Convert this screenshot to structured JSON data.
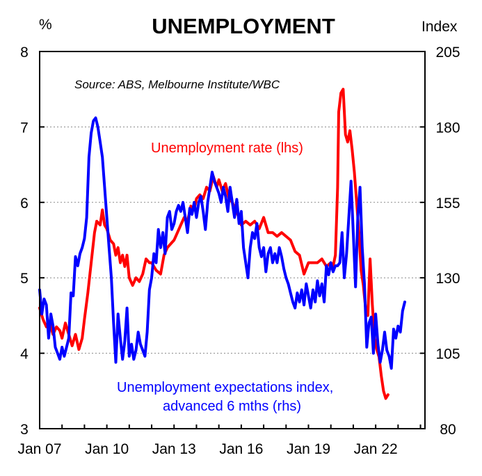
{
  "chart_data": {
    "type": "line",
    "title": "UNEMPLOYMENT",
    "left_axis_unit": "%",
    "right_axis_unit": "Index",
    "source": "Source: ABS, Melbourne Institute/WBC",
    "left_ylim": [
      3,
      8
    ],
    "right_ylim": [
      80,
      205
    ],
    "left_ticks": [
      "3",
      "4",
      "5",
      "6",
      "7",
      "8"
    ],
    "right_ticks": [
      "80",
      "105",
      "130",
      "155",
      "180",
      "205"
    ],
    "xlim": [
      2007.0,
      2024.2
    ],
    "x_ticks": [
      {
        "label": "Jan 07",
        "value": 2007.0
      },
      {
        "label": "Jan 10",
        "value": 2010.0
      },
      {
        "label": "Jan 13",
        "value": 2013.0
      },
      {
        "label": "Jan 16",
        "value": 2016.0
      },
      {
        "label": "Jan 19",
        "value": 2019.0
      },
      {
        "label": "Jan 22",
        "value": 2022.0
      }
    ],
    "gridlines": [
      4,
      5,
      6,
      7
    ],
    "colors": {
      "rate": "#ff0000",
      "index": "#0000ff",
      "text_rate": "#ff0000",
      "text_index": "#0000ff"
    },
    "series": [
      {
        "name": "Unemployment rate (lhs)",
        "label": "Unemployment rate (lhs)",
        "axis": "left",
        "color": "#ff0000",
        "points": [
          [
            2007.0,
            4.6
          ],
          [
            2007.15,
            4.45
          ],
          [
            2007.3,
            4.35
          ],
          [
            2007.45,
            4.4
          ],
          [
            2007.6,
            4.25
          ],
          [
            2007.75,
            4.35
          ],
          [
            2007.9,
            4.3
          ],
          [
            2008.0,
            4.2
          ],
          [
            2008.15,
            4.4
          ],
          [
            2008.3,
            4.25
          ],
          [
            2008.45,
            4.1
          ],
          [
            2008.6,
            4.25
          ],
          [
            2008.75,
            4.05
          ],
          [
            2008.9,
            4.2
          ],
          [
            2009.0,
            4.45
          ],
          [
            2009.15,
            4.8
          ],
          [
            2009.3,
            5.2
          ],
          [
            2009.45,
            5.6
          ],
          [
            2009.55,
            5.75
          ],
          [
            2009.7,
            5.7
          ],
          [
            2009.8,
            5.9
          ],
          [
            2009.9,
            5.7
          ],
          [
            2010.0,
            5.65
          ],
          [
            2010.15,
            5.5
          ],
          [
            2010.3,
            5.45
          ],
          [
            2010.4,
            5.3
          ],
          [
            2010.5,
            5.4
          ],
          [
            2010.6,
            5.2
          ],
          [
            2010.7,
            5.3
          ],
          [
            2010.8,
            5.15
          ],
          [
            2010.9,
            5.3
          ],
          [
            2011.0,
            5.0
          ],
          [
            2011.15,
            4.9
          ],
          [
            2011.3,
            5.0
          ],
          [
            2011.45,
            4.95
          ],
          [
            2011.6,
            5.05
          ],
          [
            2011.75,
            5.25
          ],
          [
            2011.9,
            5.2
          ],
          [
            2012.0,
            5.2
          ],
          [
            2012.2,
            5.1
          ],
          [
            2012.4,
            5.05
          ],
          [
            2012.55,
            5.3
          ],
          [
            2012.7,
            5.4
          ],
          [
            2012.85,
            5.45
          ],
          [
            2013.0,
            5.5
          ],
          [
            2013.15,
            5.6
          ],
          [
            2013.3,
            5.7
          ],
          [
            2013.45,
            5.8
          ],
          [
            2013.6,
            5.75
          ],
          [
            2013.75,
            5.95
          ],
          [
            2013.9,
            5.9
          ],
          [
            2014.0,
            6.05
          ],
          [
            2014.15,
            6.1
          ],
          [
            2014.3,
            6.05
          ],
          [
            2014.45,
            6.2
          ],
          [
            2014.6,
            6.15
          ],
          [
            2014.75,
            6.35
          ],
          [
            2014.9,
            6.2
          ],
          [
            2015.0,
            6.3
          ],
          [
            2015.15,
            6.15
          ],
          [
            2015.3,
            6.25
          ],
          [
            2015.45,
            6.05
          ],
          [
            2015.6,
            6.0
          ],
          [
            2015.75,
            5.9
          ],
          [
            2015.9,
            5.8
          ],
          [
            2016.0,
            5.7
          ],
          [
            2016.2,
            5.75
          ],
          [
            2016.4,
            5.7
          ],
          [
            2016.6,
            5.75
          ],
          [
            2016.8,
            5.65
          ],
          [
            2017.0,
            5.8
          ],
          [
            2017.2,
            5.6
          ],
          [
            2017.4,
            5.6
          ],
          [
            2017.6,
            5.55
          ],
          [
            2017.8,
            5.6
          ],
          [
            2018.0,
            5.55
          ],
          [
            2018.2,
            5.5
          ],
          [
            2018.4,
            5.35
          ],
          [
            2018.6,
            5.3
          ],
          [
            2018.8,
            5.05
          ],
          [
            2019.0,
            5.2
          ],
          [
            2019.2,
            5.2
          ],
          [
            2019.4,
            5.2
          ],
          [
            2019.6,
            5.25
          ],
          [
            2019.8,
            5.15
          ],
          [
            2020.0,
            5.2
          ],
          [
            2020.1,
            5.15
          ],
          [
            2020.2,
            5.3
          ],
          [
            2020.3,
            6.2
          ],
          [
            2020.35,
            7.2
          ],
          [
            2020.45,
            7.45
          ],
          [
            2020.55,
            7.5
          ],
          [
            2020.65,
            6.9
          ],
          [
            2020.75,
            6.8
          ],
          [
            2020.85,
            6.95
          ],
          [
            2020.95,
            6.7
          ],
          [
            2021.05,
            6.4
          ],
          [
            2021.15,
            6.0
          ],
          [
            2021.25,
            5.6
          ],
          [
            2021.35,
            5.1
          ],
          [
            2021.45,
            4.9
          ],
          [
            2021.55,
            4.6
          ],
          [
            2021.65,
            4.5
          ],
          [
            2021.75,
            5.25
          ],
          [
            2021.85,
            4.65
          ],
          [
            2021.95,
            4.2
          ],
          [
            2022.05,
            4.05
          ],
          [
            2022.15,
            3.95
          ],
          [
            2022.25,
            3.7
          ],
          [
            2022.35,
            3.5
          ],
          [
            2022.45,
            3.4
          ],
          [
            2022.55,
            3.45
          ]
        ]
      },
      {
        "name": "Unemployment expectations index, advanced 6 mths (rhs)",
        "label_line1": "Unemployment expectations index,",
        "label_line2": "advanced 6 mths (rhs)",
        "axis": "right",
        "color": "#0000ff",
        "points": [
          [
            2007.0,
            126
          ],
          [
            2007.1,
            118
          ],
          [
            2007.2,
            123
          ],
          [
            2007.3,
            121
          ],
          [
            2007.4,
            110
          ],
          [
            2007.5,
            118
          ],
          [
            2007.6,
            114
          ],
          [
            2007.7,
            107
          ],
          [
            2007.8,
            105
          ],
          [
            2007.9,
            103
          ],
          [
            2008.0,
            107
          ],
          [
            2008.1,
            104
          ],
          [
            2008.2,
            107
          ],
          [
            2008.3,
            110
          ],
          [
            2008.4,
            125
          ],
          [
            2008.5,
            124
          ],
          [
            2008.6,
            137
          ],
          [
            2008.7,
            134
          ],
          [
            2008.8,
            138
          ],
          [
            2008.9,
            140
          ],
          [
            2009.0,
            143
          ],
          [
            2009.1,
            150
          ],
          [
            2009.2,
            170
          ],
          [
            2009.3,
            178
          ],
          [
            2009.4,
            182
          ],
          [
            2009.5,
            183
          ],
          [
            2009.6,
            180
          ],
          [
            2009.7,
            175
          ],
          [
            2009.8,
            170
          ],
          [
            2009.9,
            160
          ],
          [
            2010.0,
            150
          ],
          [
            2010.1,
            140
          ],
          [
            2010.2,
            130
          ],
          [
            2010.3,
            115
          ],
          [
            2010.4,
            102
          ],
          [
            2010.5,
            118
          ],
          [
            2010.6,
            110
          ],
          [
            2010.7,
            103
          ],
          [
            2010.8,
            109
          ],
          [
            2010.9,
            120
          ],
          [
            2011.0,
            104
          ],
          [
            2011.1,
            108
          ],
          [
            2011.2,
            103
          ],
          [
            2011.3,
            106
          ],
          [
            2011.4,
            112
          ],
          [
            2011.5,
            108
          ],
          [
            2011.6,
            106
          ],
          [
            2011.7,
            104
          ],
          [
            2011.8,
            112
          ],
          [
            2011.9,
            126
          ],
          [
            2012.0,
            130
          ],
          [
            2012.1,
            138
          ],
          [
            2012.2,
            135
          ],
          [
            2012.3,
            146
          ],
          [
            2012.4,
            140
          ],
          [
            2012.5,
            145
          ],
          [
            2012.6,
            138
          ],
          [
            2012.7,
            150
          ],
          [
            2012.8,
            152
          ],
          [
            2012.9,
            146
          ],
          [
            2013.0,
            148
          ],
          [
            2013.1,
            152
          ],
          [
            2013.2,
            154
          ],
          [
            2013.3,
            152
          ],
          [
            2013.4,
            155
          ],
          [
            2013.5,
            150
          ],
          [
            2013.6,
            145
          ],
          [
            2013.7,
            153
          ],
          [
            2013.8,
            151
          ],
          [
            2013.9,
            155
          ],
          [
            2014.0,
            150
          ],
          [
            2014.1,
            155
          ],
          [
            2014.2,
            157
          ],
          [
            2014.3,
            152
          ],
          [
            2014.4,
            146
          ],
          [
            2014.5,
            155
          ],
          [
            2014.6,
            160
          ],
          [
            2014.7,
            165
          ],
          [
            2014.8,
            162
          ],
          [
            2014.9,
            160
          ],
          [
            2015.0,
            158
          ],
          [
            2015.1,
            155
          ],
          [
            2015.2,
            160
          ],
          [
            2015.3,
            157
          ],
          [
            2015.4,
            152
          ],
          [
            2015.5,
            160
          ],
          [
            2015.6,
            155
          ],
          [
            2015.7,
            150
          ],
          [
            2015.8,
            156
          ],
          [
            2015.9,
            148
          ],
          [
            2016.0,
            152
          ],
          [
            2016.1,
            140
          ],
          [
            2016.2,
            135
          ],
          [
            2016.3,
            130
          ],
          [
            2016.4,
            140
          ],
          [
            2016.5,
            145
          ],
          [
            2016.6,
            143
          ],
          [
            2016.7,
            148
          ],
          [
            2016.8,
            140
          ],
          [
            2016.9,
            137
          ],
          [
            2017.0,
            140
          ],
          [
            2017.1,
            132
          ],
          [
            2017.2,
            138
          ],
          [
            2017.3,
            140
          ],
          [
            2017.4,
            135
          ],
          [
            2017.5,
            138
          ],
          [
            2017.6,
            135
          ],
          [
            2017.7,
            140
          ],
          [
            2017.8,
            137
          ],
          [
            2017.9,
            133
          ],
          [
            2018.0,
            130
          ],
          [
            2018.1,
            128
          ],
          [
            2018.2,
            125
          ],
          [
            2018.3,
            122
          ],
          [
            2018.4,
            120
          ],
          [
            2018.5,
            125
          ],
          [
            2018.6,
            122
          ],
          [
            2018.7,
            126
          ],
          [
            2018.8,
            121
          ],
          [
            2018.9,
            128
          ],
          [
            2019.0,
            124
          ],
          [
            2019.1,
            120
          ],
          [
            2019.2,
            126
          ],
          [
            2019.3,
            122
          ],
          [
            2019.4,
            129
          ],
          [
            2019.5,
            124
          ],
          [
            2019.6,
            128
          ],
          [
            2019.7,
            122
          ],
          [
            2019.8,
            134
          ],
          [
            2019.9,
            131
          ],
          [
            2020.0,
            135
          ],
          [
            2020.1,
            132
          ],
          [
            2020.2,
            134
          ],
          [
            2020.3,
            134
          ],
          [
            2020.4,
            135
          ],
          [
            2020.5,
            145
          ],
          [
            2020.6,
            130
          ],
          [
            2020.7,
            138
          ],
          [
            2020.8,
            150
          ],
          [
            2020.9,
            162
          ],
          [
            2021.0,
            145
          ],
          [
            2021.1,
            127
          ],
          [
            2021.2,
            150
          ],
          [
            2021.3,
            160
          ],
          [
            2021.4,
            140
          ],
          [
            2021.5,
            128
          ],
          [
            2021.6,
            107
          ],
          [
            2021.7,
            115
          ],
          [
            2021.8,
            117
          ],
          [
            2021.9,
            105
          ],
          [
            2022.0,
            118
          ],
          [
            2022.1,
            108
          ],
          [
            2022.2,
            102
          ],
          [
            2022.3,
            106
          ],
          [
            2022.4,
            112
          ],
          [
            2022.5,
            106
          ],
          [
            2022.6,
            104
          ],
          [
            2022.7,
            100
          ],
          [
            2022.8,
            113
          ],
          [
            2022.9,
            110
          ],
          [
            2023.0,
            114
          ],
          [
            2023.1,
            112
          ],
          [
            2023.2,
            119
          ],
          [
            2023.3,
            122
          ]
        ]
      }
    ]
  }
}
